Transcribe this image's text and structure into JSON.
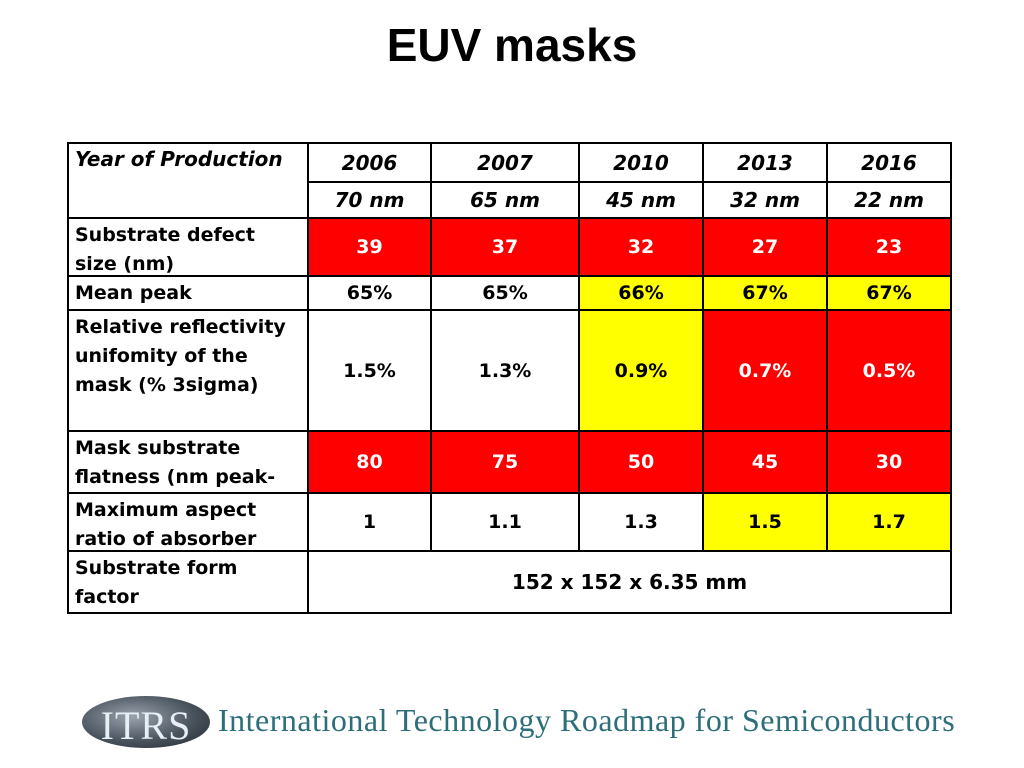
{
  "title": "EUV masks",
  "table": {
    "corner_label": "Year of Production",
    "years": [
      "2006",
      "2007",
      "2010",
      "2013",
      "2016"
    ],
    "nodes": [
      "70 nm",
      "65 nm",
      "45 nm",
      "32 nm",
      "22 nm"
    ],
    "rows": [
      {
        "label": "Substrate defect size (nm)",
        "values": [
          "39",
          "37",
          "32",
          "27",
          "23"
        ],
        "colors": [
          "red",
          "red",
          "red",
          "red",
          "red"
        ]
      },
      {
        "label": "Mean peak",
        "values": [
          "65%",
          "65%",
          "66%",
          "67%",
          "67%"
        ],
        "colors": [
          "white",
          "white",
          "yellow",
          "yellow",
          "yellow"
        ]
      },
      {
        "label": "Relative reflectivity unifomity of the mask (% 3sigma)",
        "values": [
          "1.5%",
          "1.3%",
          "0.9%",
          "0.7%",
          "0.5%"
        ],
        "colors": [
          "white",
          "white",
          "yellow",
          "red",
          "red"
        ]
      },
      {
        "label": "Mask substrate flatness (nm peak-",
        "values": [
          "80",
          "75",
          "50",
          "45",
          "30"
        ],
        "colors": [
          "red",
          "red",
          "red",
          "red",
          "red"
        ]
      },
      {
        "label": "Maximum aspect ratio of absorber",
        "values": [
          "1",
          "1.1",
          "1.3",
          "1.5",
          "1.7"
        ],
        "colors": [
          "white",
          "white",
          "white",
          "yellow",
          "yellow"
        ]
      }
    ],
    "form_factor": {
      "label": "Substrate form factor",
      "value": "152 x 152 x 6.35 mm"
    }
  },
  "colors": {
    "red": "#ff0000",
    "yellow": "#ffff00",
    "white": "#ffffff"
  },
  "footer": {
    "logo_text": "ITRS",
    "banner_text": "International Technology Roadmap for Semiconductors"
  }
}
